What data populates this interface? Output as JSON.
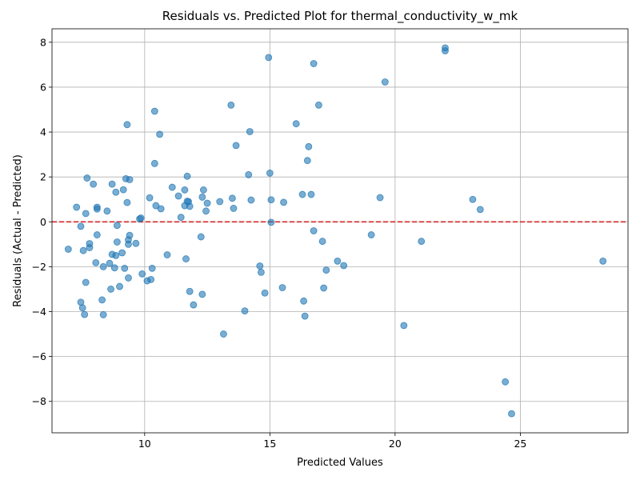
{
  "chart_data": {
    "type": "scatter",
    "title": "Residuals vs. Predicted Plot for thermal_conductivity_w_mk",
    "xlabel": "Predicted Values",
    "ylabel": "Residuals (Actual - Predicted)",
    "xlim": [
      6.3,
      29.3
    ],
    "ylim": [
      -9.4,
      8.6
    ],
    "xticks": [
      10,
      15,
      20,
      25
    ],
    "xtick_labels": [
      "10",
      "15",
      "20",
      "25"
    ],
    "yticks": [
      -8,
      -6,
      -4,
      -2,
      0,
      2,
      4,
      6,
      8
    ],
    "ytick_labels": [
      "−8",
      "−6",
      "−4",
      "−2",
      "0",
      "2",
      "4",
      "6",
      "8"
    ],
    "grid": true,
    "reference_line": {
      "y": 0,
      "color": "#d62728",
      "style": "dashed"
    },
    "marker_color": "#1f77b4",
    "points": [
      [
        6.95,
        -1.22
      ],
      [
        7.28,
        0.65
      ],
      [
        7.45,
        -0.2
      ],
      [
        7.45,
        -3.58
      ],
      [
        7.52,
        -3.83
      ],
      [
        7.55,
        -1.28
      ],
      [
        7.6,
        -4.13
      ],
      [
        7.65,
        0.37
      ],
      [
        7.65,
        -2.7
      ],
      [
        7.7,
        1.95
      ],
      [
        7.8,
        -0.97
      ],
      [
        7.8,
        -1.15
      ],
      [
        7.95,
        1.68
      ],
      [
        8.05,
        -1.82
      ],
      [
        8.1,
        0.57
      ],
      [
        8.1,
        0.65
      ],
      [
        8.1,
        -0.58
      ],
      [
        8.3,
        -3.48
      ],
      [
        8.35,
        -4.14
      ],
      [
        8.35,
        -2.0
      ],
      [
        8.5,
        0.48
      ],
      [
        8.6,
        -1.85
      ],
      [
        8.65,
        -3.0
      ],
      [
        8.7,
        1.68
      ],
      [
        8.7,
        -1.45
      ],
      [
        8.8,
        -2.05
      ],
      [
        8.85,
        -1.5
      ],
      [
        8.85,
        1.32
      ],
      [
        8.9,
        -0.16
      ],
      [
        8.9,
        -0.9
      ],
      [
        9.0,
        -2.88
      ],
      [
        9.1,
        -1.38
      ],
      [
        9.15,
        1.43
      ],
      [
        9.2,
        -2.07
      ],
      [
        9.25,
        1.92
      ],
      [
        9.3,
        0.86
      ],
      [
        9.3,
        4.33
      ],
      [
        9.35,
        -1.0
      ],
      [
        9.35,
        -0.8
      ],
      [
        9.35,
        -2.5
      ],
      [
        9.4,
        -0.6
      ],
      [
        9.4,
        1.88
      ],
      [
        9.65,
        -0.96
      ],
      [
        9.8,
        0.13
      ],
      [
        9.85,
        0.17
      ],
      [
        9.9,
        -2.32
      ],
      [
        10.1,
        -2.63
      ],
      [
        10.2,
        1.07
      ],
      [
        10.25,
        -2.57
      ],
      [
        10.3,
        -2.07
      ],
      [
        10.4,
        4.93
      ],
      [
        10.4,
        2.6
      ],
      [
        10.45,
        0.72
      ],
      [
        10.6,
        3.9
      ],
      [
        10.65,
        0.58
      ],
      [
        10.9,
        -1.47
      ],
      [
        11.1,
        1.54
      ],
      [
        11.35,
        1.15
      ],
      [
        11.45,
        0.2
      ],
      [
        11.6,
        1.42
      ],
      [
        11.6,
        0.72
      ],
      [
        11.65,
        -1.65
      ],
      [
        11.7,
        0.92
      ],
      [
        11.7,
        2.03
      ],
      [
        11.75,
        0.9
      ],
      [
        11.8,
        0.69
      ],
      [
        11.8,
        -3.1
      ],
      [
        11.95,
        -3.7
      ],
      [
        12.25,
        -0.67
      ],
      [
        12.3,
        1.1
      ],
      [
        12.3,
        -3.23
      ],
      [
        12.35,
        1.42
      ],
      [
        12.45,
        0.48
      ],
      [
        12.5,
        0.83
      ],
      [
        13.0,
        0.9
      ],
      [
        13.15,
        -5.0
      ],
      [
        13.45,
        5.2
      ],
      [
        13.5,
        1.05
      ],
      [
        13.55,
        0.6
      ],
      [
        13.65,
        3.4
      ],
      [
        14.0,
        -3.97
      ],
      [
        14.15,
        2.1
      ],
      [
        14.2,
        4.02
      ],
      [
        14.25,
        0.97
      ],
      [
        14.6,
        -1.97
      ],
      [
        14.65,
        -2.25
      ],
      [
        14.8,
        -3.17
      ],
      [
        14.95,
        7.32
      ],
      [
        15.0,
        2.17
      ],
      [
        15.05,
        0.98
      ],
      [
        15.05,
        -0.02
      ],
      [
        15.5,
        -2.93
      ],
      [
        15.55,
        0.87
      ],
      [
        16.05,
        4.37
      ],
      [
        16.3,
        1.22
      ],
      [
        16.35,
        -3.53
      ],
      [
        16.4,
        -4.2
      ],
      [
        16.5,
        2.73
      ],
      [
        16.55,
        3.35
      ],
      [
        16.65,
        1.22
      ],
      [
        16.75,
        7.05
      ],
      [
        16.75,
        -0.4
      ],
      [
        16.95,
        5.2
      ],
      [
        17.1,
        -0.87
      ],
      [
        17.15,
        -2.95
      ],
      [
        17.25,
        -2.15
      ],
      [
        17.7,
        -1.75
      ],
      [
        17.95,
        -1.95
      ],
      [
        19.05,
        -0.58
      ],
      [
        19.4,
        1.08
      ],
      [
        19.6,
        6.23
      ],
      [
        20.35,
        -4.62
      ],
      [
        21.05,
        -0.87
      ],
      [
        22.0,
        7.75
      ],
      [
        22.0,
        7.62
      ],
      [
        23.1,
        1.0
      ],
      [
        23.4,
        0.55
      ],
      [
        24.4,
        -7.13
      ],
      [
        24.65,
        -8.55
      ],
      [
        28.3,
        -1.75
      ]
    ]
  }
}
